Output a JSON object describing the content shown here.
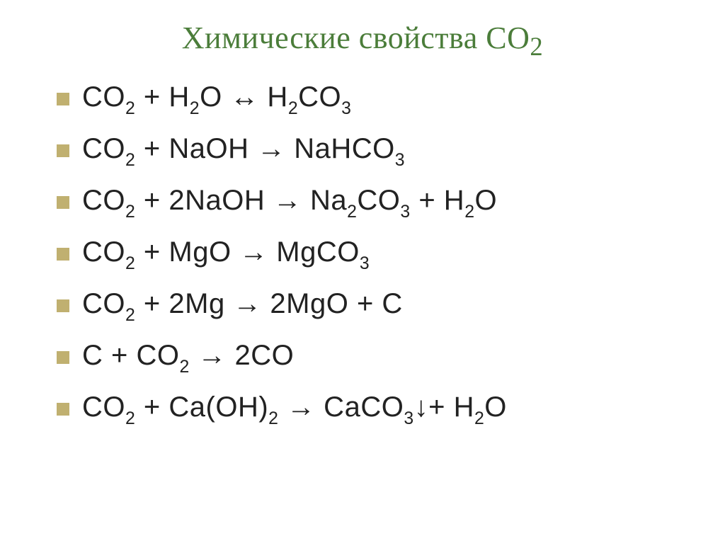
{
  "slide": {
    "title": "Химические свойства СО₂",
    "title_color": "#4b7d3a",
    "title_fontsize": 44,
    "bullet_color": "#c0b070",
    "text_color": "#222222",
    "eq_fontsize": 40,
    "background_color": "#ffffff",
    "equations": [
      {
        "html": "CO<sub>2</sub> + H<sub>2</sub>O ↔ H<sub>2</sub>CO<sub>3</sub>"
      },
      {
        "html": "CO<sub>2</sub> + NaOH → NaHCO<sub>3</sub>"
      },
      {
        "html": "CO<sub>2</sub> + 2NaOH → Na<sub>2</sub>CO<sub>3</sub> + H<sub>2</sub>O"
      },
      {
        "html": "CO<sub>2</sub> + MgO → MgCO<sub>3</sub>"
      },
      {
        "html": "CO<sub>2</sub> + 2Mg → 2MgO + C"
      },
      {
        "html": "C + CO<sub>2</sub> → 2CO"
      },
      {
        "html": "CO<sub>2</sub> + Ca(OH)<sub>2</sub> → CaCO<sub>3</sub>↓+ H<sub>2</sub>O"
      }
    ]
  }
}
